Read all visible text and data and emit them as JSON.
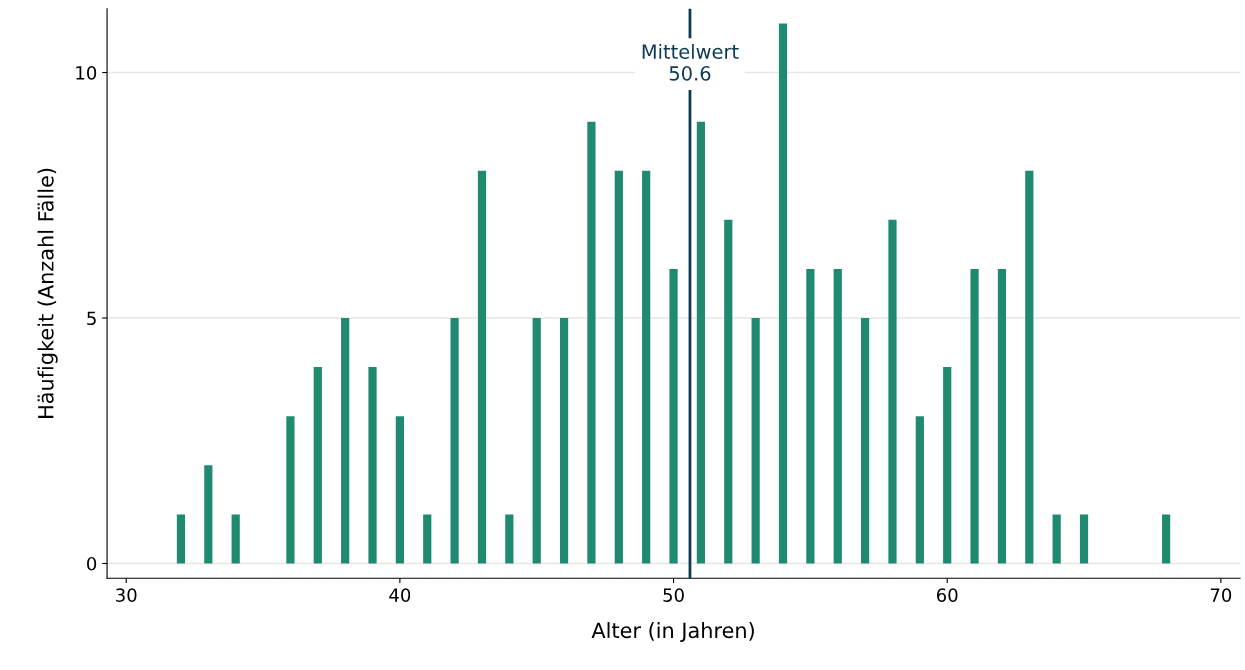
{
  "chart_data": {
    "type": "bar",
    "xlabel": "Alter (in Jahren)",
    "ylabel": "Häufigkeit (Anzahl Fälle)",
    "x": [
      32,
      33,
      34,
      36,
      37,
      38,
      39,
      40,
      41,
      42,
      43,
      44,
      45,
      46,
      47,
      48,
      49,
      50,
      51,
      52,
      53,
      54,
      55,
      56,
      57,
      58,
      59,
      60,
      61,
      62,
      63,
      64,
      65,
      68
    ],
    "values": [
      1,
      2,
      1,
      3,
      4,
      5,
      4,
      3,
      1,
      5,
      8,
      1,
      5,
      5,
      9,
      8,
      8,
      6,
      9,
      7,
      5,
      11,
      6,
      6,
      5,
      7,
      3,
      4,
      6,
      6,
      8,
      1,
      1,
      1
    ],
    "color": "#1f8a70",
    "xlim": [
      29.3,
      70.7
    ],
    "xticks": [
      30,
      40,
      50,
      60,
      70
    ],
    "ylim": [
      -0.3,
      11.3
    ],
    "yticks": [
      0,
      5,
      10
    ],
    "grid": "y",
    "ref_lines": [
      {
        "axis": "x",
        "value": 50.6,
        "label": "Mittelwert\n50.6",
        "color": "#0d3b57",
        "line_style": "solid"
      }
    ]
  }
}
